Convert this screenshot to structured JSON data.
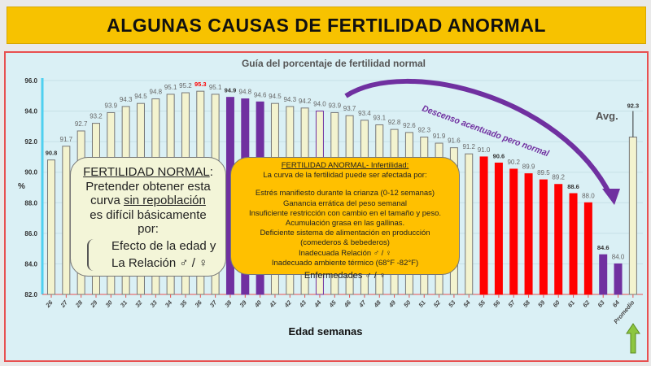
{
  "banner": {
    "title": "ALGUNAS CAUSAS DE FERTILIDAD ANORMAL"
  },
  "chart_data": {
    "type": "bar",
    "title": "Guía del porcentaje de fertilidad normal",
    "xlabel": "Edad semanas",
    "ylabel": "%",
    "ylim": [
      82,
      96
    ],
    "yticks": [
      "82.0",
      "84.0",
      "86.0",
      "88.0",
      "90.0",
      "92.0",
      "94.0",
      "96.0"
    ],
    "categories": [
      "26",
      "27",
      "28",
      "29",
      "30",
      "31",
      "32",
      "33",
      "34",
      "35",
      "36",
      "37",
      "38",
      "39",
      "40",
      "41",
      "42",
      "43",
      "44",
      "45",
      "46",
      "47",
      "48",
      "49",
      "50",
      "51",
      "52",
      "53",
      "54",
      "55",
      "56",
      "57",
      "58",
      "59",
      "60",
      "61",
      "62",
      "63",
      "64",
      "Promedio"
    ],
    "values": [
      90.8,
      91.7,
      92.7,
      93.2,
      93.9,
      94.3,
      94.5,
      94.8,
      95.1,
      95.2,
      95.3,
      95.1,
      94.9,
      94.8,
      94.6,
      94.5,
      94.3,
      94.2,
      94.0,
      93.9,
      93.7,
      93.4,
      93.1,
      92.8,
      92.6,
      92.3,
      91.9,
      91.6,
      91.2,
      91.0,
      90.6,
      90.2,
      89.9,
      89.5,
      89.2,
      88.6,
      88.0,
      84.6,
      84.0,
      92.3
    ],
    "bar_colors": {
      "normal": "#f3f3cf",
      "purple": "#7030a0",
      "red": "#ff0000",
      "peak_label": "#ff0000"
    },
    "annotations": {
      "avg": "Avg.",
      "descent": "Descenso acentuado pero normal"
    }
  },
  "normal_box": {
    "title": "FERTILIDAD NORMAL",
    "colon": ":",
    "line1": "Pretender obtener esta",
    "line2a": "curva ",
    "line2b": "sin repoblación",
    "line3": "es difícil básicamente",
    "line4": "por:",
    "item1": "Efecto de  la edad y",
    "item2": "La Relación ♂ / ♀"
  },
  "abnormal_box": {
    "title": "FERTILIDAD ANORMAL- Infertilidad:",
    "subtitle": "La curva de la fertilidad puede ser afectada por:",
    "items": [
      "Estrés manifiesto durante la crianza (0-12 semanas)",
      "Ganancia errática del peso semanal",
      "Insuficiente restricción con cambio en el tamaño y peso.",
      "Acumulación grasa en las gallinas.",
      "Deficiente sistema de alimentación en producción",
      "(comederos & bebederos)",
      "Inadecuada Relación ♂ / ♀",
      "Inadecuado ambiente térmico (68°F -82°F)",
      "Enfermedades ♂ / ♀"
    ]
  }
}
